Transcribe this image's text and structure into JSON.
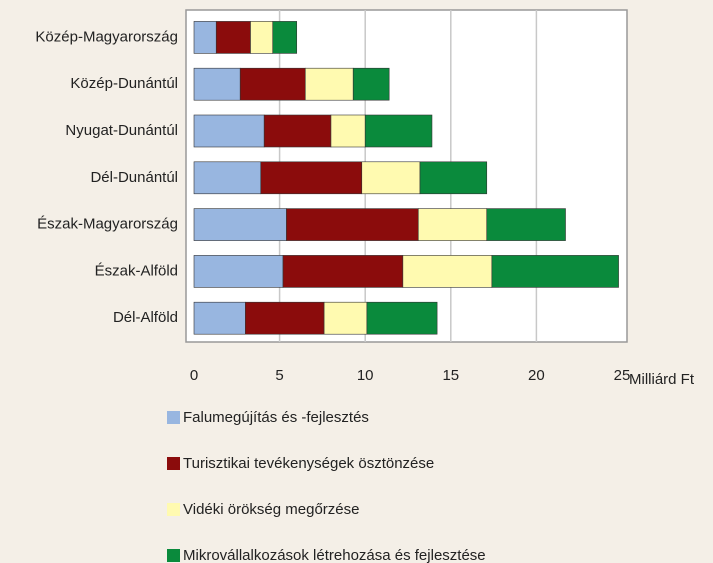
{
  "chart_data": {
    "type": "bar",
    "orientation": "horizontal",
    "stacked": true,
    "xlabel": "Milliárd Ft",
    "categories": [
      "Közép-Magyarország",
      "Közép-Dunántúl",
      "Nyugat-Dunántúl",
      "Dél-Dunántúl",
      "Észak-Magyarország",
      "Észak-Alföld",
      "Dél-Alföld"
    ],
    "series": [
      {
        "name": "Falumegújítás és -fejlesztés",
        "color": "#98b6e0",
        "values": [
          1.3,
          2.7,
          4.1,
          3.9,
          5.4,
          5.2,
          3.0
        ]
      },
      {
        "name": "Turisztikai tevékenységek ösztönzése",
        "color": "#8b0c0c",
        "values": [
          2.0,
          3.8,
          3.9,
          5.9,
          7.7,
          7.0,
          4.6
        ]
      },
      {
        "name": "Vidéki örökség megőrzése",
        "color": "#fffab0",
        "values": [
          1.3,
          2.8,
          2.0,
          3.4,
          4.0,
          5.2,
          2.5
        ]
      },
      {
        "name": "Mikrovállalkozások létrehozása és fejlesztése",
        "color": "#0a8a3c",
        "values": [
          1.4,
          2.1,
          3.9,
          3.9,
          4.6,
          7.4,
          4.1
        ]
      }
    ],
    "xlim": [
      0,
      25
    ],
    "xticks": [
      0,
      5,
      10,
      15,
      20,
      25
    ],
    "grid": true
  }
}
